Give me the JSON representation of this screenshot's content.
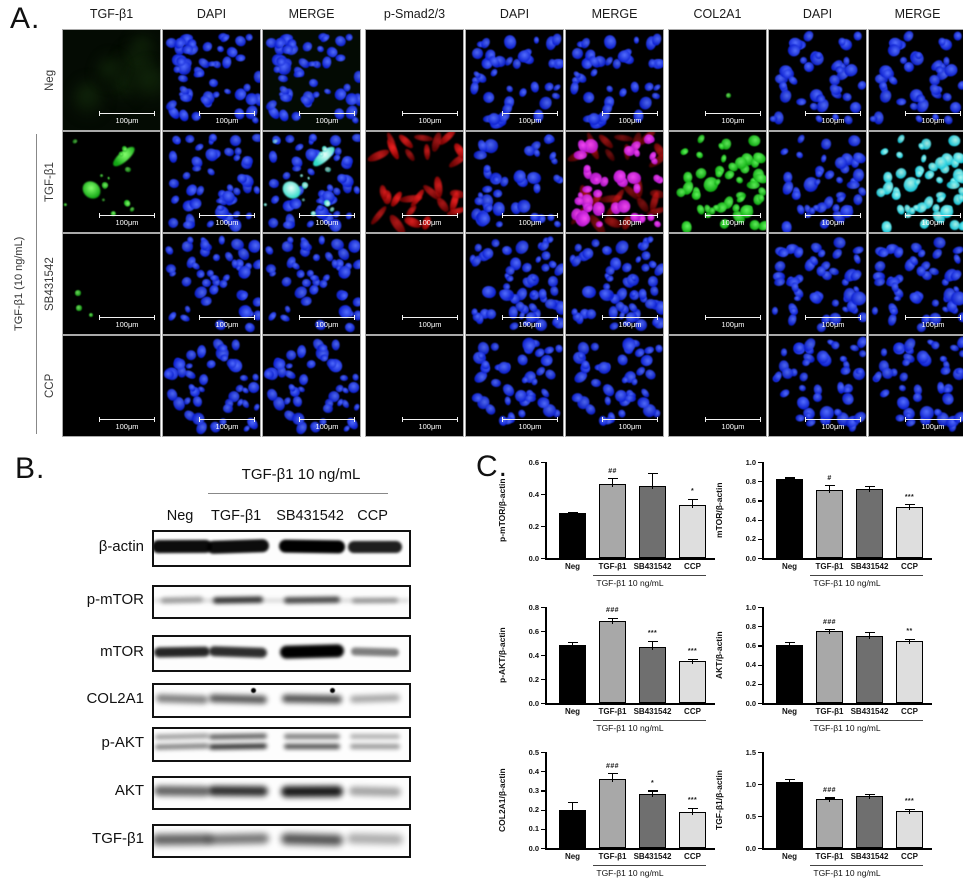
{
  "figure": {
    "panelA": {
      "label": "A.",
      "col_headers": [
        "TGF-β1",
        "DAPI",
        "MERGE",
        "p-Smad2/3",
        "DAPI",
        "MERGE",
        "COL2A1",
        "DAPI",
        "MERGE"
      ],
      "row_labels": [
        "Neg",
        "TGF-β1",
        "SB431542",
        "CCP"
      ],
      "side_label": "TGF-β1 (10 ng/mL)",
      "scale_bar_label": "100μm",
      "cells": [
        [
          "faint_green",
          "dapi",
          "merge_faint_green",
          "black",
          "dapi",
          "merge_plain",
          "speck_green",
          "dapi",
          "merge_plain"
        ],
        [
          "green_blobs",
          "dapi",
          "merge_green",
          "red_cells",
          "dapi",
          "merge_magenta",
          "green_nuclei",
          "dapi",
          "merge_cyan"
        ],
        [
          "green_specks",
          "dapi",
          "merge_plain",
          "black",
          "dapi",
          "merge_plain",
          "black",
          "dapi",
          "merge_plain"
        ],
        [
          "black",
          "dapi",
          "merge_plain",
          "black",
          "dapi",
          "merge_plain",
          "black",
          "dapi",
          "merge_plain"
        ]
      ]
    },
    "panelB": {
      "label": "B.",
      "header": "TGF-β1 10 ng/mL",
      "lanes": [
        "Neg",
        "TGF-β1",
        "SB431542",
        "CCP"
      ],
      "blots": [
        {
          "label": "β-actin",
          "style": "sharp",
          "intensities": [
            0.95,
            0.95,
            1.0,
            0.88
          ]
        },
        {
          "label": "p-mTOR",
          "style": "streak",
          "intensities": [
            0.3,
            0.8,
            0.7,
            0.35
          ]
        },
        {
          "label": "mTOR",
          "style": "bold",
          "intensities": [
            0.85,
            0.82,
            1.0,
            0.5
          ]
        },
        {
          "label": "COL2A1",
          "style": "fuzzy",
          "intensities": [
            0.5,
            0.65,
            0.68,
            0.35
          ]
        },
        {
          "label": "p-AKT",
          "style": "double",
          "intensities": [
            0.5,
            0.85,
            0.7,
            0.4
          ]
        },
        {
          "label": "AKT",
          "style": "smear",
          "intensities": [
            0.6,
            0.82,
            0.9,
            0.35
          ]
        },
        {
          "label": "TGF-β1",
          "style": "wide",
          "intensities": [
            0.62,
            0.55,
            0.68,
            0.32
          ]
        }
      ]
    },
    "panelC": {
      "label": "C."
    }
  },
  "chart_data": [
    {
      "type": "bar",
      "title": "",
      "xlabel": "",
      "ylabel": "p-mTOR/β-actin",
      "categories": [
        "Neg",
        "TGF-β1",
        "SB431542",
        "CCP"
      ],
      "values": [
        0.28,
        0.46,
        0.45,
        0.33
      ],
      "errors": [
        0.01,
        0.04,
        0.08,
        0.04
      ],
      "sig": [
        "",
        "##",
        "",
        "*"
      ],
      "ylim": [
        0,
        0.6
      ],
      "yticks": [
        "0.0",
        "0.2",
        "0.4",
        "0.6"
      ],
      "bar_colors": [
        "#000000",
        "#a8a8a8",
        "#6f6f6f",
        "#dedede"
      ],
      "group_label": "TGF-β1 10 ng/mL",
      "grid": false,
      "legend": "none"
    },
    {
      "type": "bar",
      "title": "",
      "xlabel": "",
      "ylabel": "mTOR/β-actin",
      "categories": [
        "Neg",
        "TGF-β1",
        "SB431542",
        "CCP"
      ],
      "values": [
        0.82,
        0.71,
        0.72,
        0.53
      ],
      "errors": [
        0.02,
        0.05,
        0.03,
        0.03
      ],
      "sig": [
        "",
        "#",
        "",
        "***"
      ],
      "ylim": [
        0,
        1.0
      ],
      "yticks": [
        "0.0",
        "0.2",
        "0.4",
        "0.6",
        "0.8",
        "1.0"
      ],
      "bar_colors": [
        "#000000",
        "#a8a8a8",
        "#6f6f6f",
        "#dedede"
      ],
      "group_label": "TGF-β1 10 ng/mL",
      "grid": false,
      "legend": "none"
    },
    {
      "type": "bar",
      "title": "",
      "xlabel": "",
      "ylabel": "p-AKT/β-actin",
      "categories": [
        "Neg",
        "TGF-β1",
        "SB431542",
        "CCP"
      ],
      "values": [
        0.48,
        0.68,
        0.47,
        0.35
      ],
      "errors": [
        0.03,
        0.03,
        0.05,
        0.02
      ],
      "sig": [
        "",
        "###",
        "***",
        "***"
      ],
      "ylim": [
        0,
        0.8
      ],
      "yticks": [
        "0.0",
        "0.2",
        "0.4",
        "0.6",
        "0.8"
      ],
      "bar_colors": [
        "#000000",
        "#a8a8a8",
        "#6f6f6f",
        "#dedede"
      ],
      "group_label": "TGF-β1 10 ng/mL",
      "grid": false,
      "legend": "none"
    },
    {
      "type": "bar",
      "title": "",
      "xlabel": "",
      "ylabel": "AKT/β-actin",
      "categories": [
        "Neg",
        "TGF-β1",
        "SB431542",
        "CCP"
      ],
      "values": [
        0.6,
        0.75,
        0.7,
        0.65
      ],
      "errors": [
        0.04,
        0.02,
        0.04,
        0.02
      ],
      "sig": [
        "",
        "###",
        "",
        "**"
      ],
      "ylim": [
        0,
        1.0
      ],
      "yticks": [
        "0.0",
        "0.2",
        "0.4",
        "0.6",
        "0.8",
        "1.0"
      ],
      "bar_colors": [
        "#000000",
        "#a8a8a8",
        "#6f6f6f",
        "#dedede"
      ],
      "group_label": "TGF-β1 10 ng/mL",
      "grid": false,
      "legend": "none"
    },
    {
      "type": "bar",
      "title": "",
      "xlabel": "",
      "ylabel": "COL2A1/β-actin",
      "categories": [
        "Neg",
        "TGF-β1",
        "SB431542",
        "CCP"
      ],
      "values": [
        0.2,
        0.36,
        0.28,
        0.19
      ],
      "errors": [
        0.04,
        0.03,
        0.02,
        0.02
      ],
      "sig": [
        "",
        "###",
        "*",
        "***"
      ],
      "ylim": [
        0,
        0.5
      ],
      "yticks": [
        "0.0",
        "0.1",
        "0.2",
        "0.3",
        "0.4",
        "0.5"
      ],
      "bar_colors": [
        "#000000",
        "#a8a8a8",
        "#6f6f6f",
        "#dedede"
      ],
      "group_label": "TGF-β1 10 ng/mL",
      "grid": false,
      "legend": "none"
    },
    {
      "type": "bar",
      "title": "",
      "xlabel": "",
      "ylabel": "TGF-β1/β-actin",
      "categories": [
        "Neg",
        "TGF-β1",
        "SB431542",
        "CCP"
      ],
      "values": [
        1.03,
        0.77,
        0.81,
        0.58
      ],
      "errors": [
        0.05,
        0.02,
        0.03,
        0.03
      ],
      "sig": [
        "",
        "###",
        "",
        "***"
      ],
      "ylim": [
        0,
        1.5
      ],
      "yticks": [
        "0.0",
        "0.5",
        "1.0",
        "1.5"
      ],
      "bar_colors": [
        "#000000",
        "#a8a8a8",
        "#6f6f6f",
        "#dedede"
      ],
      "group_label": "TGF-β1 10 ng/mL",
      "grid": false,
      "legend": "none"
    }
  ]
}
